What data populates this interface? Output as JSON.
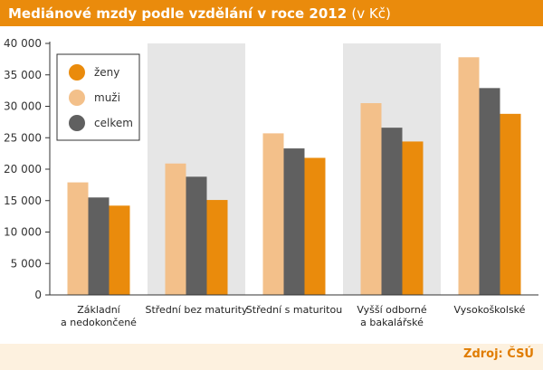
{
  "title": "Mediánové mzdy podle vzdělání v roce 2012",
  "title_unit": "(v Kč)",
  "source": "Zdroj: ČSÚ",
  "colors": {
    "header": "#ea8b0c",
    "zeny": "#ea8b0c",
    "muzi": "#f3c08a",
    "celkem": "#606060",
    "band": "#e6e6e6",
    "footer": "#fdf1df"
  },
  "chart_data": {
    "type": "bar",
    "categories": [
      [
        "Základní",
        "a nedokončené"
      ],
      [
        "Střední bez maturity"
      ],
      [
        "Střední s maturitou"
      ],
      [
        "Vyšší odborné",
        "a bakalářské"
      ],
      [
        "Vysokoškolské"
      ]
    ],
    "series": [
      {
        "name": "muži",
        "values": [
          17900,
          20900,
          25700,
          30500,
          37800
        ]
      },
      {
        "name": "celkem",
        "values": [
          15500,
          18800,
          23300,
          26600,
          32900
        ]
      },
      {
        "name": "ženy",
        "values": [
          14200,
          15100,
          21800,
          24400,
          28800
        ]
      }
    ],
    "legend": [
      "ženy",
      "muži",
      "celkem"
    ],
    "y_ticks": [
      "0",
      "5 000",
      "10 000",
      "15 000",
      "20 000",
      "25 000",
      "30 000",
      "35 000",
      "40 000"
    ],
    "ylim": [
      0,
      40000
    ],
    "shaded_categories": [
      1,
      3
    ],
    "legend_position": "top-left"
  }
}
